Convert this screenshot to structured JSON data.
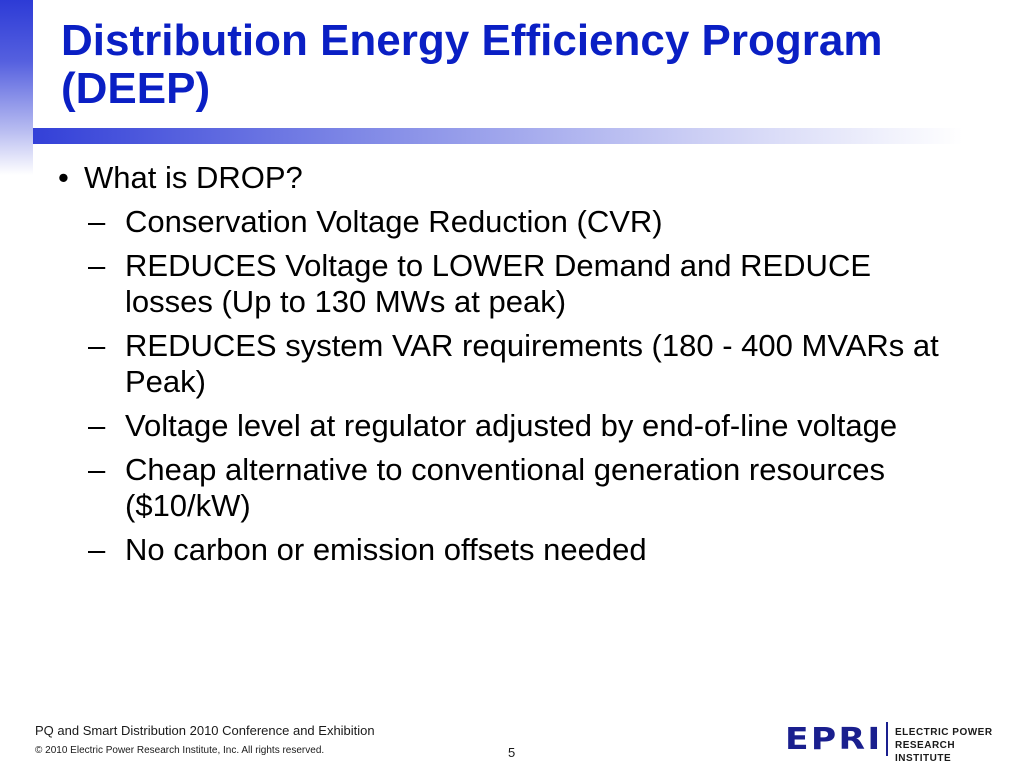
{
  "slide": {
    "title": "Distribution Energy Efficiency Program (DEEP)",
    "bullet_mark": "•",
    "sub_mark": "–",
    "bullets": [
      {
        "text": "What is DROP?",
        "subs": [
          "Conservation Voltage Reduction (CVR)",
          "REDUCES Voltage to LOWER Demand and REDUCE losses (Up to 130 MWs at peak)",
          "REDUCES system VAR requirements (180 - 400 MVARs at Peak)",
          "Voltage level at regulator adjusted by end-of-line voltage",
          "Cheap alternative to conventional generation resources ($10/kW)",
          "No carbon or emission offsets needed"
        ]
      }
    ]
  },
  "footer": {
    "conference": "PQ and Smart Distribution 2010 Conference and Exhibition",
    "copyright": "© 2010 Electric Power Research Institute, Inc. All rights reserved.",
    "page_number": "5"
  },
  "logo": {
    "mark": "EPRI",
    "line1": "ELECTRIC POWER",
    "line2": "RESEARCH INSTITUTE",
    "color": "#1a1f8e"
  },
  "colors": {
    "title": "#0a1fc4",
    "accent": "#3340d8"
  }
}
